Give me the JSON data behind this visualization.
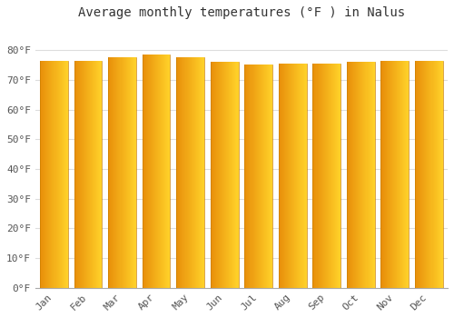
{
  "title": "Average monthly temperatures (°F ) in Nalus",
  "months": [
    "Jan",
    "Feb",
    "Mar",
    "Apr",
    "May",
    "Jun",
    "Jul",
    "Aug",
    "Sep",
    "Oct",
    "Nov",
    "Dec"
  ],
  "values": [
    76.3,
    76.3,
    77.5,
    78.5,
    77.5,
    76.0,
    75.2,
    75.5,
    75.5,
    76.0,
    76.5,
    76.5
  ],
  "bar_color_center": "#FFB300",
  "bar_color_edge": "#E8900A",
  "background_color": "#FFFFFF",
  "plot_bg_color": "#FFFFFF",
  "grid_color": "#DDDDDD",
  "text_color": "#555555",
  "ylim": [
    0,
    88
  ],
  "yticks": [
    0,
    10,
    20,
    30,
    40,
    50,
    60,
    70,
    80
  ],
  "title_fontsize": 10,
  "tick_fontsize": 8
}
